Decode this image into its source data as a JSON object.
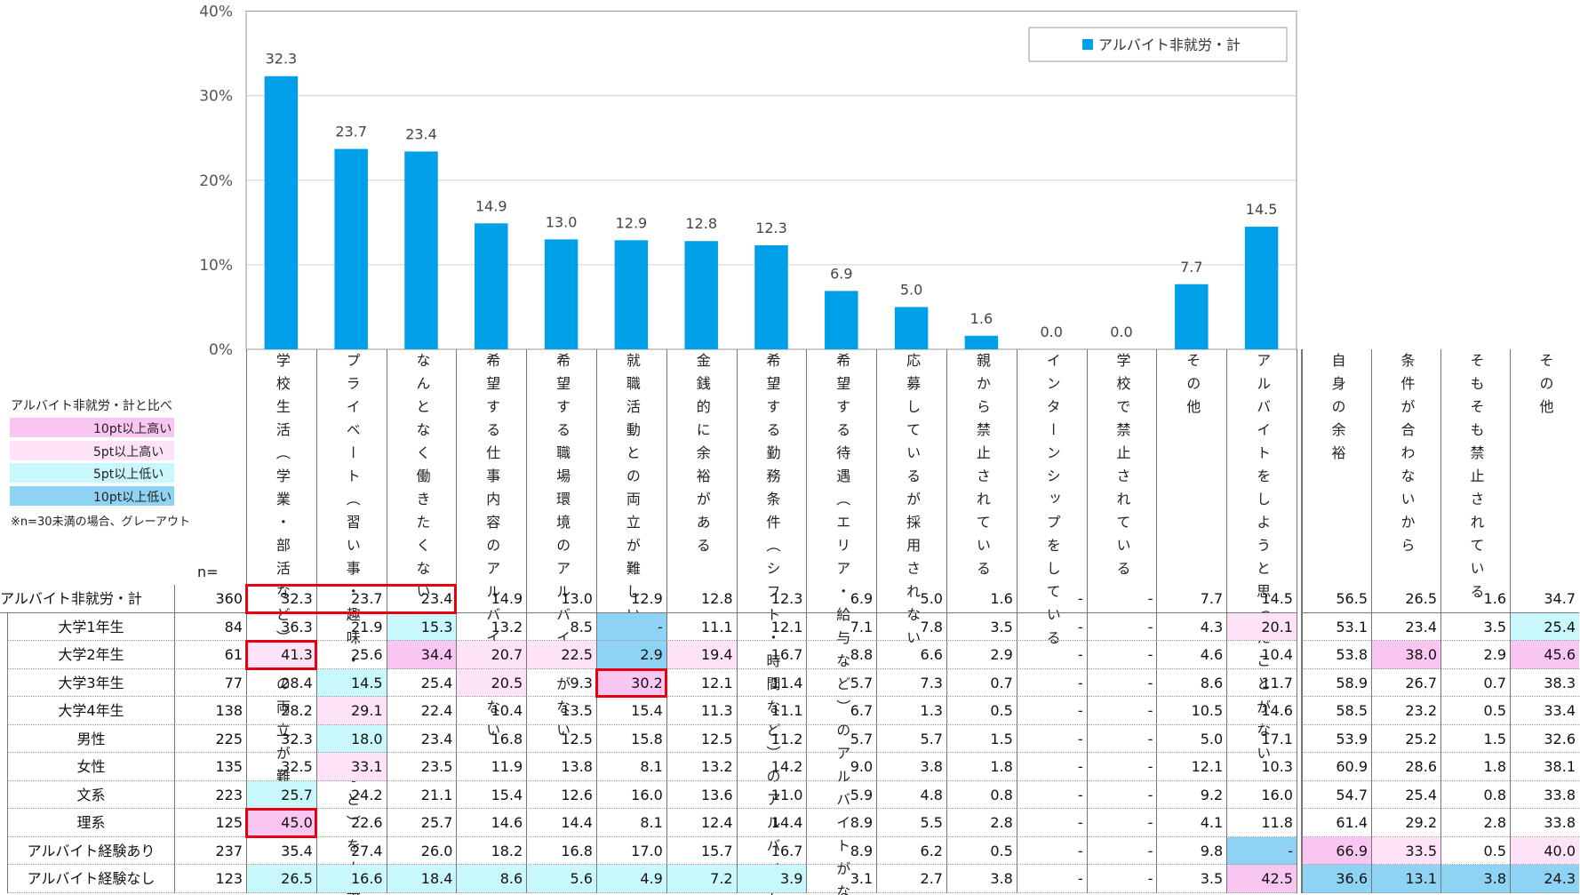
{
  "chart_data": {
    "type": "bar",
    "categories": [
      "学校生活（学業・部活など）との両立が難しい",
      "プライベート（習い事・趣味・社会活動など）を大事にしたい",
      "なんとなく働きたくない",
      "希望する仕事内容のアルバイトがない",
      "希望する職場環境のアルバイトがない",
      "就職活動との両立が難しい",
      "金銭的に余裕がある",
      "希望する勤務条件（シフト・時間など）のアルバイトがない",
      "希望する待遇（エリア・給与など）のアルバイトがない",
      "応募しているが採用されない",
      "親から禁止されている",
      "インターンシップをしている",
      "学校で禁止されている",
      "その他",
      "アルバイトをしようと思ったことがない"
    ],
    "series": [
      {
        "name": "アルバイト非就労・計",
        "color": "#00a0e9",
        "values": [
          32.3,
          23.7,
          23.4,
          14.9,
          13.0,
          12.9,
          12.8,
          12.3,
          6.9,
          5.0,
          1.6,
          0.0,
          0.0,
          7.7,
          14.5
        ],
        "value_labels": [
          "32.3",
          "23.7",
          "23.4",
          "14.9",
          "13.0",
          "12.9",
          "12.8",
          "12.3",
          "6.9",
          "5.0",
          "1.6",
          "0.0",
          "0.0",
          "7.7",
          "14.5"
        ]
      }
    ],
    "ylim": [
      0,
      40
    ],
    "yticks": [
      {
        "value": 0,
        "label": "0%"
      },
      {
        "value": 10,
        "label": "10%"
      },
      {
        "value": 20,
        "label": "20%"
      },
      {
        "value": 30,
        "label": "30%"
      },
      {
        "value": 40,
        "label": "40%"
      }
    ],
    "grid": true,
    "legend": "upper right"
  },
  "key": {
    "title": "アルバイト非就労・計と比べ",
    "items": [
      {
        "label": "10pt以上高い",
        "color": "#f9c6f2"
      },
      {
        "label": "5pt以上高い",
        "color": "#fde2f8"
      },
      {
        "label": "5pt以上低い",
        "color": "#c8f8fb"
      },
      {
        "label": "10pt以上低い",
        "color": "#8fd3f4"
      }
    ],
    "note": "※n=30未満の場合、グレーアウト"
  },
  "table": {
    "n_header": "n=",
    "extra_columns": [
      "自身の余裕",
      "条件が合わないから",
      "そもそも禁止されている",
      "その他"
    ],
    "rows": [
      {
        "label": "アルバイト非就労・計",
        "n": 360,
        "values": [
          "32.3",
          "23.7",
          "23.4",
          "14.9",
          "13.0",
          "12.9",
          "12.8",
          "12.3",
          "6.9",
          "5.0",
          "1.6",
          "-",
          "-",
          "7.7",
          "14.5",
          "56.5",
          "26.5",
          "1.6",
          "34.7"
        ]
      },
      {
        "label": "大学1年生",
        "n": 84,
        "values": [
          "36.3",
          "21.9",
          "15.3",
          "13.2",
          "8.5",
          "-",
          "11.1",
          "12.1",
          "7.1",
          "7.8",
          "3.5",
          "-",
          "-",
          "4.3",
          "20.1",
          "53.1",
          "23.4",
          "3.5",
          "25.4"
        ]
      },
      {
        "label": "大学2年生",
        "n": 61,
        "values": [
          "41.3",
          "25.6",
          "34.4",
          "20.7",
          "22.5",
          "2.9",
          "19.4",
          "16.7",
          "8.8",
          "6.6",
          "2.9",
          "-",
          "-",
          "4.6",
          "10.4",
          "53.8",
          "38.0",
          "2.9",
          "45.6"
        ]
      },
      {
        "label": "大学3年生",
        "n": 77,
        "values": [
          "28.4",
          "14.5",
          "25.4",
          "20.5",
          "9.3",
          "30.2",
          "12.1",
          "11.4",
          "5.7",
          "7.3",
          "0.7",
          "-",
          "-",
          "8.6",
          "11.7",
          "58.9",
          "26.7",
          "0.7",
          "38.3"
        ]
      },
      {
        "label": "大学4年生",
        "n": 138,
        "values": [
          "28.2",
          "29.1",
          "22.4",
          "10.4",
          "13.5",
          "15.4",
          "11.3",
          "11.1",
          "6.7",
          "1.3",
          "0.5",
          "-",
          "-",
          "10.5",
          "14.6",
          "58.5",
          "23.2",
          "0.5",
          "33.4"
        ]
      },
      {
        "label": "男性",
        "n": 225,
        "values": [
          "32.3",
          "18.0",
          "23.4",
          "16.8",
          "12.5",
          "15.8",
          "12.5",
          "11.2",
          "5.7",
          "5.7",
          "1.5",
          "-",
          "-",
          "5.0",
          "17.1",
          "53.9",
          "25.2",
          "1.5",
          "32.6"
        ]
      },
      {
        "label": "女性",
        "n": 135,
        "values": [
          "32.5",
          "33.1",
          "23.5",
          "11.9",
          "13.8",
          "8.1",
          "13.2",
          "14.2",
          "9.0",
          "3.8",
          "1.8",
          "-",
          "-",
          "12.1",
          "10.3",
          "60.9",
          "28.6",
          "1.8",
          "38.1"
        ]
      },
      {
        "label": "文系",
        "n": 223,
        "values": [
          "25.7",
          "24.2",
          "21.1",
          "15.4",
          "12.6",
          "16.0",
          "13.6",
          "11.0",
          "5.9",
          "4.8",
          "0.8",
          "-",
          "-",
          "9.2",
          "16.0",
          "54.7",
          "25.4",
          "0.8",
          "33.8"
        ]
      },
      {
        "label": "理系",
        "n": 125,
        "values": [
          "45.0",
          "22.6",
          "25.7",
          "14.6",
          "14.4",
          "8.1",
          "12.4",
          "14.4",
          "8.9",
          "5.5",
          "2.8",
          "-",
          "-",
          "4.1",
          "11.8",
          "61.4",
          "29.2",
          "2.8",
          "33.8"
        ]
      },
      {
        "label": "アルバイト経験あり",
        "n": 237,
        "values": [
          "35.4",
          "27.4",
          "26.0",
          "18.2",
          "16.8",
          "17.0",
          "15.7",
          "16.7",
          "8.9",
          "6.2",
          "0.5",
          "-",
          "-",
          "9.8",
          "-",
          "66.9",
          "33.5",
          "0.5",
          "40.0"
        ]
      },
      {
        "label": "アルバイト経験なし",
        "n": 123,
        "values": [
          "26.5",
          "16.6",
          "18.4",
          "8.6",
          "5.6",
          "4.9",
          "7.2",
          "3.9",
          "3.1",
          "2.7",
          "3.8",
          "-",
          "-",
          "3.5",
          "42.5",
          "36.6",
          "13.1",
          "3.8",
          "24.3"
        ]
      }
    ],
    "shaded_cells": [
      [
        1,
        2,
        2
      ],
      [
        1,
        5,
        3
      ],
      [
        1,
        14,
        1
      ],
      [
        1,
        18,
        2
      ],
      [
        2,
        0,
        1
      ],
      [
        2,
        2,
        0
      ],
      [
        2,
        3,
        1
      ],
      [
        2,
        4,
        1
      ],
      [
        2,
        5,
        3
      ],
      [
        2,
        6,
        1
      ],
      [
        2,
        16,
        0
      ],
      [
        2,
        18,
        0
      ],
      [
        3,
        1,
        2
      ],
      [
        3,
        3,
        1
      ],
      [
        3,
        5,
        0
      ],
      [
        4,
        1,
        1
      ],
      [
        5,
        1,
        2
      ],
      [
        6,
        1,
        1
      ],
      [
        7,
        0,
        2
      ],
      [
        8,
        0,
        0
      ],
      [
        9,
        14,
        3
      ],
      [
        9,
        15,
        0
      ],
      [
        9,
        16,
        1
      ],
      [
        9,
        18,
        1
      ],
      [
        10,
        0,
        2
      ],
      [
        10,
        1,
        2
      ],
      [
        10,
        2,
        2
      ],
      [
        10,
        3,
        2
      ],
      [
        10,
        4,
        2
      ],
      [
        10,
        5,
        2
      ],
      [
        10,
        6,
        2
      ],
      [
        10,
        7,
        2
      ],
      [
        10,
        14,
        0
      ],
      [
        10,
        15,
        3
      ],
      [
        10,
        16,
        3
      ],
      [
        10,
        17,
        3
      ],
      [
        10,
        18,
        3
      ]
    ],
    "highlight_boxes": [
      [
        0,
        0,
        2
      ],
      [
        2,
        0,
        0
      ],
      [
        3,
        5,
        5
      ],
      [
        8,
        0,
        0
      ]
    ],
    "highlight_color": "#e60012"
  }
}
